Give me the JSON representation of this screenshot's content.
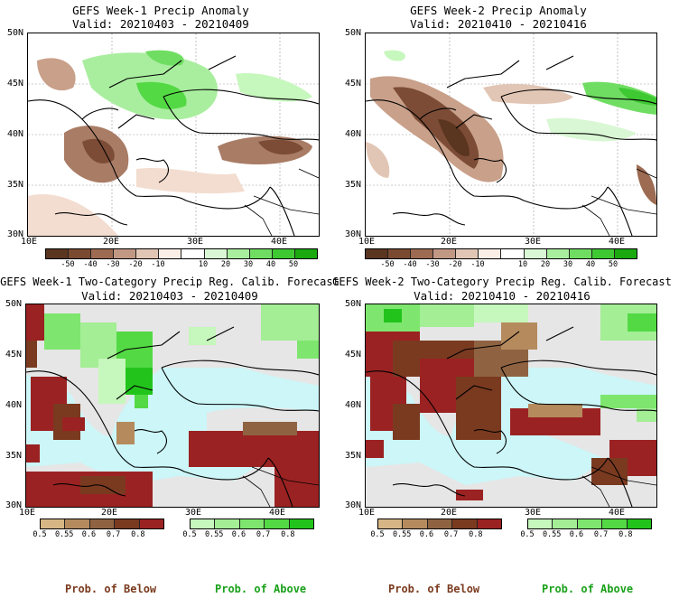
{
  "panels": [
    {
      "title": "GEFS Week-1 Precip Anomaly",
      "valid": "Valid: 20210403 - 20210409"
    },
    {
      "title": "GEFS Week-2 Precip Anomaly",
      "valid": "Valid: 20210410 - 20210416"
    },
    {
      "title": "GEFS Week-1 Two-Category Precip Reg. Calib. Forecast",
      "valid": "Valid: 20210403 - 20210409"
    },
    {
      "title": "GEFS Week-2 Two-Category Precip Reg. Calib. Forecast",
      "valid": "Valid: 20210410 - 20210416"
    }
  ],
  "lat_labels": [
    "50N",
    "45N",
    "40N",
    "35N",
    "30N"
  ],
  "lon_labels": [
    "10E",
    "20E",
    "30E",
    "40E"
  ],
  "anomaly_scale": {
    "labels": [
      "-50",
      "-40",
      "-30",
      "-20",
      "-10",
      "10",
      "20",
      "30",
      "40",
      "50"
    ],
    "colors": [
      "#5a3520",
      "#7a4a30",
      "#9c6b52",
      "#c19884",
      "#e2c6b5",
      "#fbeee6",
      "#ffffff",
      "#d9f7d4",
      "#a9ee9f",
      "#6fdd62",
      "#3ec832",
      "#1aa90f"
    ]
  },
  "prob_scale": {
    "below_labels": [
      "0.5",
      "0.55",
      "0.6",
      "0.7",
      "0.8"
    ],
    "above_labels": [
      "0.5",
      "0.55",
      "0.6",
      "0.7",
      "0.8"
    ],
    "below_colors": [
      "#d7b686",
      "#b58b5e",
      "#8f6342",
      "#7a3a20",
      "#9b2222"
    ],
    "above_colors": [
      "#c6f7bc",
      "#a4ee96",
      "#7ee66e",
      "#53d944",
      "#22c41c"
    ]
  },
  "bottom_labels": {
    "below": "Prob. of Below",
    "above": "Prob. of Above"
  },
  "colors": {
    "below_text": "#7a3a1e",
    "above_text": "#1aa11a",
    "sea": "#ccf6f8",
    "nodata": "#e6e6e6"
  }
}
